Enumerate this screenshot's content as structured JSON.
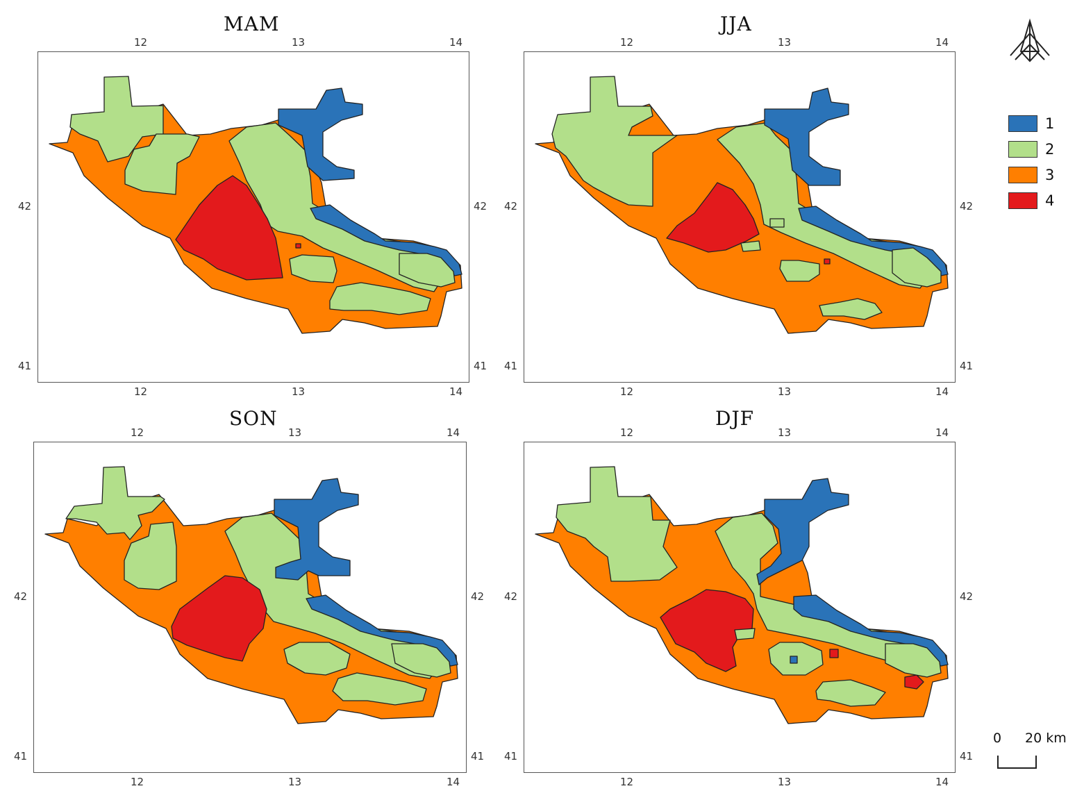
{
  "colors": {
    "1": "#2a73b8",
    "2": "#b2df8a",
    "3": "#ff7f00",
    "4": "#e31a1c",
    "frame": "#555555"
  },
  "panels": [
    {
      "title": "MAM",
      "lon_ticks": [
        "12",
        "13",
        "14"
      ],
      "lat_ticks": [
        "42",
        "41"
      ]
    },
    {
      "title": "JJA",
      "lon_ticks": [
        "12",
        "13",
        "14"
      ],
      "lat_ticks": [
        "42",
        "41"
      ]
    },
    {
      "title": "SON",
      "lon_ticks": [
        "12",
        "13",
        "14"
      ],
      "lat_ticks": [
        "42",
        "41"
      ]
    },
    {
      "title": "DJF",
      "lon_ticks": [
        "12",
        "13",
        "14"
      ],
      "lat_ticks": [
        "42",
        "41"
      ]
    }
  ],
  "legend": [
    {
      "label": "1",
      "color": "#2a73b8"
    },
    {
      "label": "2",
      "color": "#b2df8a"
    },
    {
      "label": "3",
      "color": "#ff7f00"
    },
    {
      "label": "4",
      "color": "#e31a1c"
    }
  ],
  "scale_bar": {
    "start": "0",
    "end": "20 km"
  },
  "north_arrow_icon": "north-arrow-icon"
}
